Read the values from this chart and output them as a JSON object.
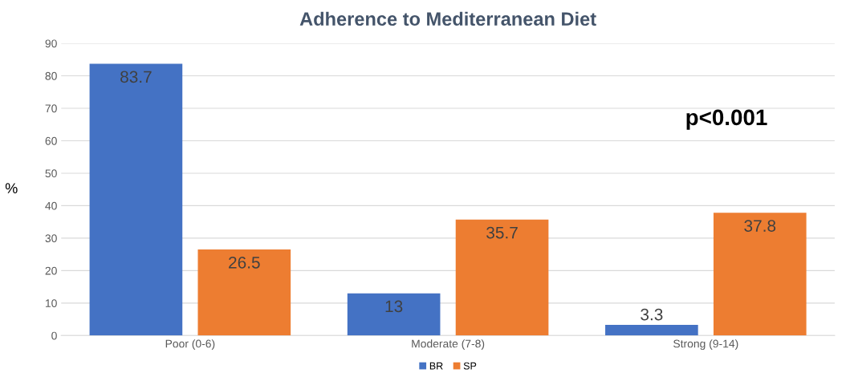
{
  "chart_data": {
    "type": "bar",
    "title": "Adherence to Mediterranean Diet",
    "ylabel": "%",
    "categories": [
      "Poor (0-6)",
      "Moderate (7-8)",
      "Strong (9-14)"
    ],
    "series": [
      {
        "name": "BR",
        "color": "#4472c4",
        "values": [
          83.7,
          13,
          3.3
        ]
      },
      {
        "name": "SP",
        "color": "#ed7d31",
        "values": [
          26.5,
          35.7,
          37.8
        ]
      }
    ],
    "ylim": [
      0,
      90
    ],
    "yticks": [
      0,
      10,
      20,
      30,
      40,
      50,
      60,
      70,
      80,
      90
    ],
    "grid": "y",
    "legend": "bottom",
    "data_labels": true,
    "annotations": [
      "p<0.001"
    ]
  }
}
